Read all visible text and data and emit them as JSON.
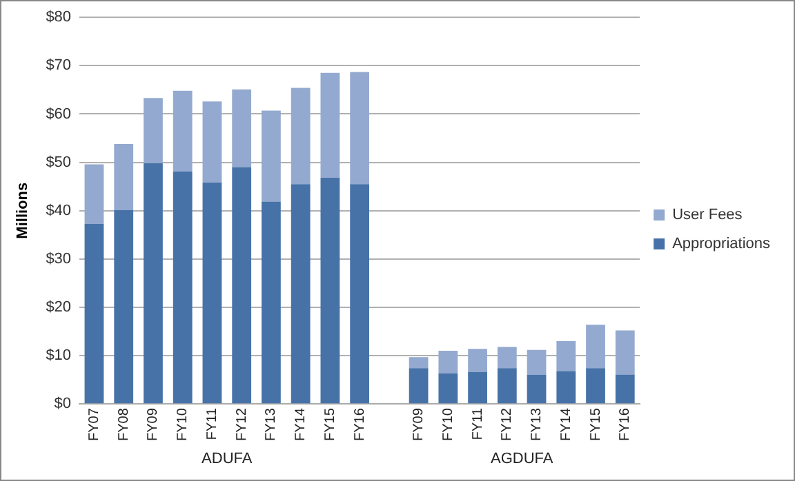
{
  "chart_data": {
    "type": "bar",
    "ylabel": "Millions",
    "categories": [
      "FY07",
      "FY08",
      "FY09",
      "FY10",
      "FY11",
      "FY12",
      "FY13",
      "FY14",
      "FY15",
      "FY16",
      null,
      "FY09",
      "FY10",
      "FY11",
      "FY12",
      "FY13",
      "FY14",
      "FY15",
      "FY16"
    ],
    "series": [
      {
        "name": "Appropriations",
        "color": "#4672a8",
        "values": [
          37.3,
          40.1,
          49.8,
          48.1,
          45.8,
          49.0,
          41.9,
          45.5,
          46.8,
          45.5,
          null,
          7.4,
          6.3,
          6.6,
          7.4,
          6.0,
          6.8,
          7.4,
          6.1
        ]
      },
      {
        "name": "User Fees",
        "color": "#93a9cf",
        "values": [
          12.3,
          13.7,
          13.5,
          16.7,
          16.8,
          16.1,
          18.8,
          19.9,
          21.7,
          23.2,
          null,
          2.3,
          4.7,
          4.8,
          4.4,
          5.2,
          6.2,
          9.0,
          9.1
        ]
      }
    ],
    "stacked": true,
    "ylim": [
      0,
      80
    ],
    "yticks": [
      {
        "value": 0,
        "label": "$0"
      },
      {
        "value": 10,
        "label": "$10"
      },
      {
        "value": 20,
        "label": "$20"
      },
      {
        "value": 30,
        "label": "$30"
      },
      {
        "value": 40,
        "label": "$40"
      },
      {
        "value": 50,
        "label": "$50"
      },
      {
        "value": 60,
        "label": "$60"
      },
      {
        "value": 70,
        "label": "$70"
      },
      {
        "value": 80,
        "label": "$80"
      }
    ],
    "grid": "y",
    "legend": "right",
    "annotations": [
      "ADUFA",
      "AGDUFA"
    ]
  }
}
